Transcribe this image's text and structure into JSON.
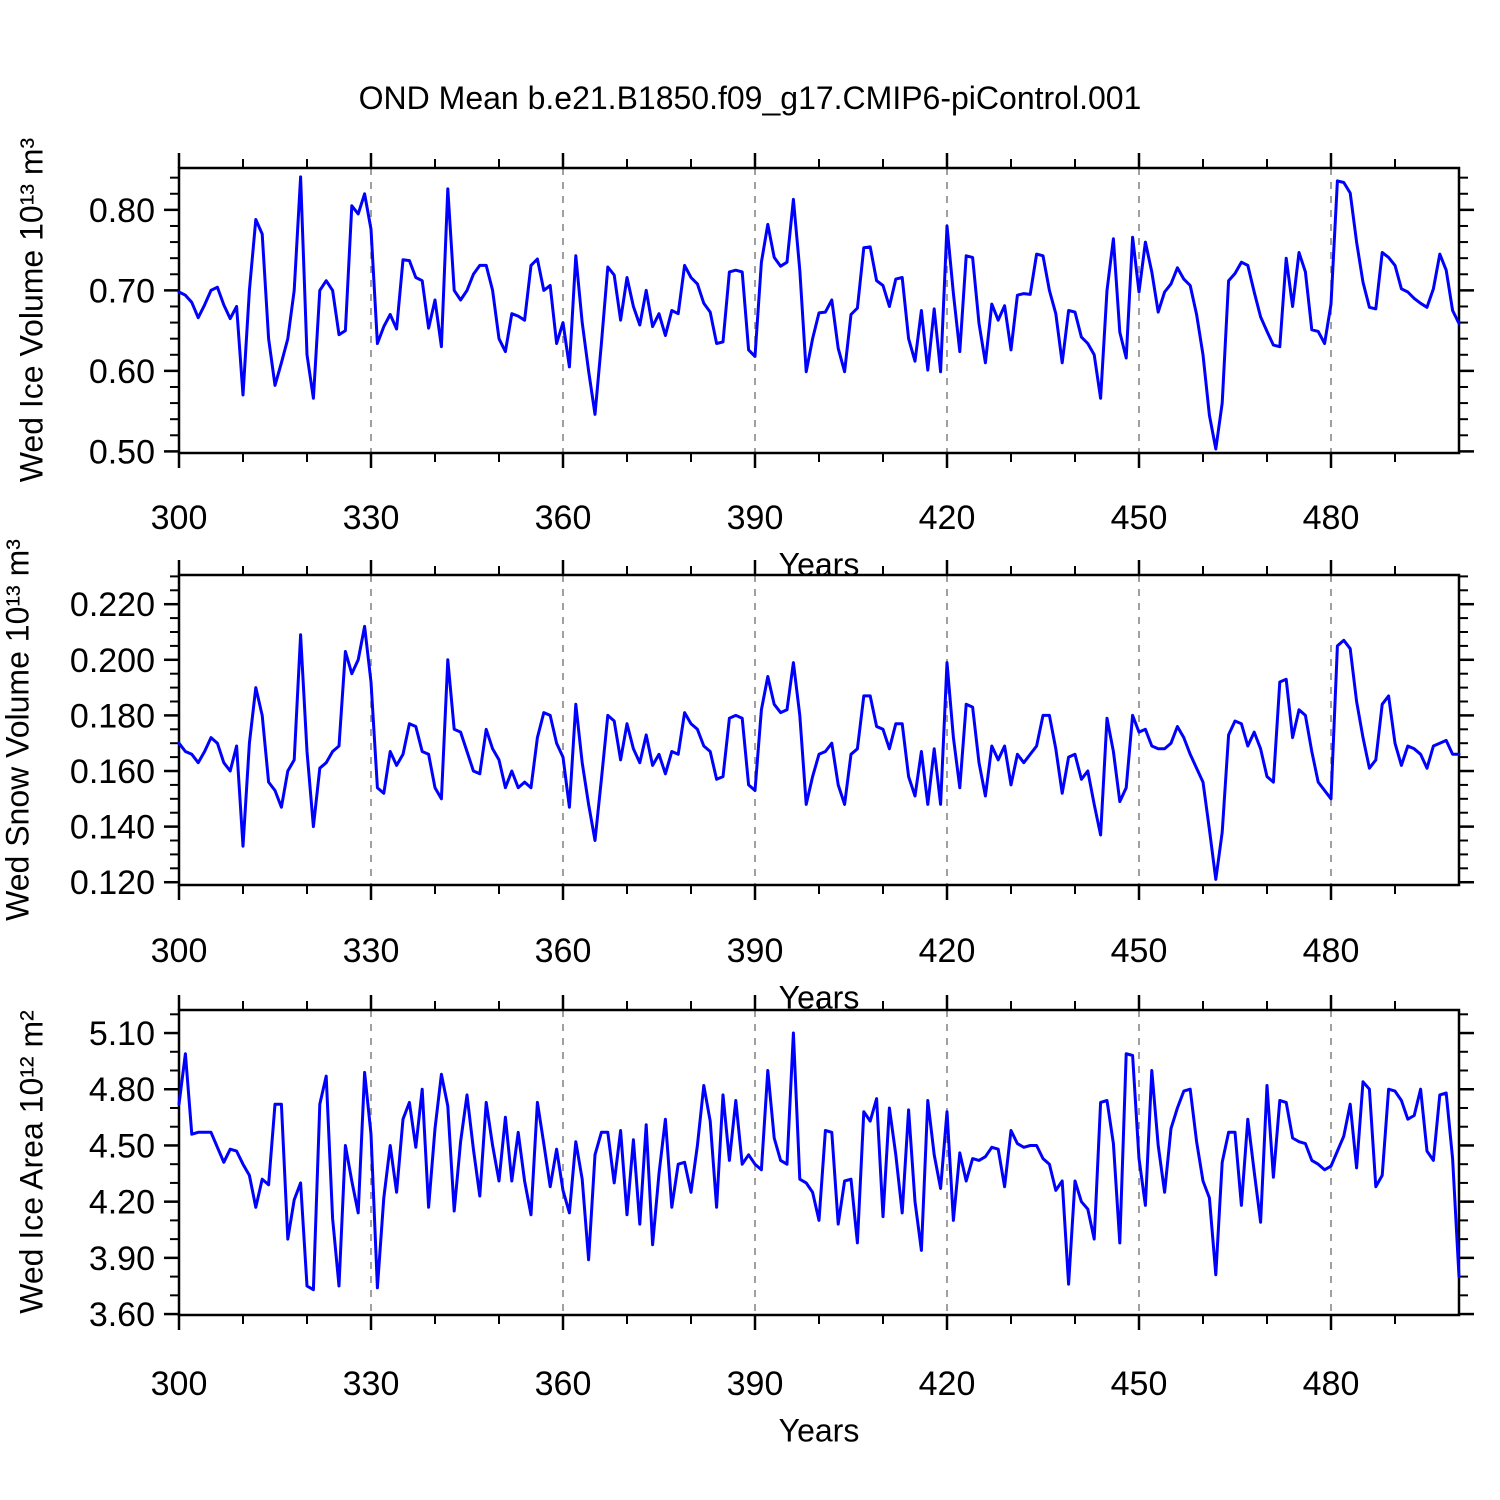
{
  "title": "OND Mean b.e21.B1850.f09_g17.CMIP6-piControl.001",
  "colors": {
    "line": "#0000ff",
    "axis": "#000000",
    "grid": "#808080",
    "background": "#ffffff"
  },
  "chart_data": [
    {
      "type": "line",
      "name": "wed-ice-volume",
      "ylabel": "Wed Ice Volume 10¹³ m³",
      "xlabel": "Years",
      "x_start": 300,
      "x_step": 1,
      "xlim": [
        300,
        500
      ],
      "xticks": [
        300,
        330,
        360,
        390,
        420,
        450,
        480
      ],
      "xtick_labels": [
        "300",
        "330",
        "360",
        "390",
        "420",
        "450",
        "480"
      ],
      "xminor_step": 10,
      "grid_x": [
        330,
        360,
        390,
        420,
        450,
        480
      ],
      "ylim": [
        0.498,
        0.852
      ],
      "yticks": [
        0.5,
        0.6,
        0.7,
        0.8
      ],
      "ytick_labels": [
        "0.50",
        "0.60",
        "0.70",
        "0.80"
      ],
      "yminor_step": 0.02,
      "values": [
        0.698,
        0.694,
        0.685,
        0.666,
        0.682,
        0.7,
        0.704,
        0.682,
        0.665,
        0.68,
        0.57,
        0.7,
        0.788,
        0.77,
        0.64,
        0.582,
        0.61,
        0.64,
        0.7,
        0.841,
        0.62,
        0.566,
        0.7,
        0.712,
        0.7,
        0.645,
        0.65,
        0.805,
        0.795,
        0.82,
        0.776,
        0.634,
        0.655,
        0.67,
        0.652,
        0.738,
        0.737,
        0.716,
        0.712,
        0.653,
        0.688,
        0.63,
        0.826,
        0.7,
        0.688,
        0.7,
        0.72,
        0.731,
        0.731,
        0.7,
        0.64,
        0.624,
        0.671,
        0.668,
        0.663,
        0.731,
        0.739,
        0.7,
        0.706,
        0.634,
        0.66,
        0.605,
        0.743,
        0.66,
        0.6,
        0.546,
        0.634,
        0.729,
        0.719,
        0.663,
        0.716,
        0.68,
        0.657,
        0.7,
        0.655,
        0.671,
        0.644,
        0.675,
        0.671,
        0.731,
        0.716,
        0.708,
        0.684,
        0.673,
        0.634,
        0.636,
        0.723,
        0.725,
        0.723,
        0.626,
        0.618,
        0.735,
        0.782,
        0.741,
        0.73,
        0.735,
        0.813,
        0.725,
        0.599,
        0.64,
        0.672,
        0.673,
        0.688,
        0.628,
        0.599,
        0.67,
        0.678,
        0.753,
        0.754,
        0.712,
        0.706,
        0.68,
        0.714,
        0.716,
        0.64,
        0.612,
        0.675,
        0.601,
        0.677,
        0.599,
        0.78,
        0.696,
        0.624,
        0.743,
        0.741,
        0.659,
        0.61,
        0.683,
        0.663,
        0.681,
        0.626,
        0.694,
        0.696,
        0.695,
        0.745,
        0.743,
        0.7,
        0.671,
        0.61,
        0.675,
        0.673,
        0.642,
        0.634,
        0.62,
        0.566,
        0.7,
        0.764,
        0.648,
        0.616,
        0.766,
        0.698,
        0.76,
        0.723,
        0.673,
        0.698,
        0.708,
        0.728,
        0.714,
        0.706,
        0.67,
        0.62,
        0.545,
        0.503,
        0.56,
        0.712,
        0.721,
        0.735,
        0.731,
        0.698,
        0.667,
        0.649,
        0.632,
        0.63,
        0.74,
        0.68,
        0.747,
        0.723,
        0.651,
        0.649,
        0.634,
        0.683,
        0.836,
        0.834,
        0.821,
        0.76,
        0.71,
        0.679,
        0.677,
        0.747,
        0.741,
        0.731,
        0.702,
        0.698,
        0.69,
        0.684,
        0.679,
        0.702,
        0.745,
        0.725,
        0.675,
        0.659
      ]
    },
    {
      "type": "line",
      "name": "wed-snow-volume",
      "ylabel": "Wed Snow Volume 10¹³ m³",
      "xlabel": "Years",
      "x_start": 300,
      "x_step": 1,
      "xlim": [
        300,
        500
      ],
      "xticks": [
        300,
        330,
        360,
        390,
        420,
        450,
        480
      ],
      "xtick_labels": [
        "300",
        "330",
        "360",
        "390",
        "420",
        "450",
        "480"
      ],
      "xminor_step": 10,
      "grid_x": [
        330,
        360,
        390,
        420,
        450,
        480
      ],
      "ylim": [
        0.119,
        0.2305
      ],
      "yticks": [
        0.12,
        0.14,
        0.16,
        0.18,
        0.2,
        0.22
      ],
      "ytick_labels": [
        "0.120",
        "0.140",
        "0.160",
        "0.180",
        "0.200",
        "0.220"
      ],
      "yminor_step": 0.005,
      "values": [
        0.17,
        0.167,
        0.166,
        0.163,
        0.167,
        0.172,
        0.17,
        0.163,
        0.16,
        0.169,
        0.133,
        0.17,
        0.19,
        0.18,
        0.156,
        0.153,
        0.147,
        0.16,
        0.164,
        0.209,
        0.167,
        0.14,
        0.161,
        0.163,
        0.167,
        0.169,
        0.203,
        0.195,
        0.2,
        0.212,
        0.192,
        0.154,
        0.152,
        0.167,
        0.162,
        0.166,
        0.177,
        0.176,
        0.167,
        0.166,
        0.154,
        0.15,
        0.2,
        0.175,
        0.174,
        0.167,
        0.16,
        0.159,
        0.175,
        0.168,
        0.164,
        0.154,
        0.16,
        0.154,
        0.156,
        0.154,
        0.172,
        0.181,
        0.18,
        0.17,
        0.165,
        0.147,
        0.184,
        0.163,
        0.148,
        0.135,
        0.157,
        0.18,
        0.178,
        0.164,
        0.177,
        0.168,
        0.163,
        0.173,
        0.162,
        0.166,
        0.159,
        0.167,
        0.166,
        0.181,
        0.177,
        0.175,
        0.169,
        0.167,
        0.157,
        0.158,
        0.179,
        0.18,
        0.179,
        0.155,
        0.153,
        0.182,
        0.194,
        0.184,
        0.181,
        0.182,
        0.199,
        0.18,
        0.148,
        0.158,
        0.166,
        0.167,
        0.17,
        0.155,
        0.148,
        0.166,
        0.168,
        0.187,
        0.187,
        0.176,
        0.175,
        0.168,
        0.177,
        0.177,
        0.158,
        0.151,
        0.167,
        0.148,
        0.168,
        0.148,
        0.199,
        0.172,
        0.154,
        0.184,
        0.183,
        0.163,
        0.151,
        0.169,
        0.164,
        0.169,
        0.155,
        0.166,
        0.163,
        0.166,
        0.169,
        0.18,
        0.18,
        0.168,
        0.152,
        0.165,
        0.166,
        0.157,
        0.16,
        0.148,
        0.137,
        0.179,
        0.167,
        0.149,
        0.154,
        0.18,
        0.174,
        0.175,
        0.169,
        0.168,
        0.168,
        0.17,
        0.176,
        0.172,
        0.166,
        0.161,
        0.156,
        0.139,
        0.121,
        0.138,
        0.173,
        0.178,
        0.177,
        0.169,
        0.174,
        0.168,
        0.158,
        0.156,
        0.192,
        0.193,
        0.172,
        0.182,
        0.18,
        0.167,
        0.156,
        0.153,
        0.15,
        0.205,
        0.207,
        0.204,
        0.185,
        0.172,
        0.161,
        0.164,
        0.184,
        0.187,
        0.17,
        0.162,
        0.169,
        0.168,
        0.166,
        0.161,
        0.169,
        0.17,
        0.171,
        0.166,
        0.166
      ]
    },
    {
      "type": "line",
      "name": "wed-ice-area",
      "ylabel": "Wed Ice Area 10¹² m²",
      "xlabel": "Years",
      "x_start": 300,
      "x_step": 1,
      "xlim": [
        300,
        500
      ],
      "xticks": [
        300,
        330,
        360,
        390,
        420,
        450,
        480
      ],
      "xtick_labels": [
        "300",
        "330",
        "360",
        "390",
        "420",
        "450",
        "480"
      ],
      "xminor_step": 10,
      "grid_x": [
        330,
        360,
        390,
        420,
        450,
        480
      ],
      "ylim": [
        3.595,
        5.223
      ],
      "yticks": [
        3.6,
        3.9,
        4.2,
        4.5,
        4.8,
        5.1
      ],
      "ytick_labels": [
        "3.60",
        "3.90",
        "4.20",
        "4.50",
        "4.80",
        "5.10"
      ],
      "yminor_step": 0.1,
      "values": [
        4.72,
        4.99,
        4.56,
        4.57,
        4.57,
        4.57,
        4.49,
        4.41,
        4.48,
        4.47,
        4.4,
        4.34,
        4.17,
        4.32,
        4.29,
        4.72,
        4.72,
        4.0,
        4.21,
        4.3,
        3.75,
        3.73,
        4.72,
        4.87,
        4.11,
        3.75,
        4.5,
        4.31,
        4.14,
        4.89,
        4.56,
        3.74,
        4.22,
        4.5,
        4.25,
        4.64,
        4.73,
        4.49,
        4.8,
        4.17,
        4.59,
        4.88,
        4.71,
        4.15,
        4.52,
        4.77,
        4.48,
        4.23,
        4.73,
        4.5,
        4.31,
        4.65,
        4.31,
        4.57,
        4.31,
        4.13,
        4.73,
        4.51,
        4.28,
        4.48,
        4.26,
        4.14,
        4.52,
        4.32,
        3.89,
        4.45,
        4.57,
        4.57,
        4.3,
        4.58,
        4.13,
        4.53,
        4.08,
        4.61,
        3.97,
        4.35,
        4.64,
        4.17,
        4.4,
        4.41,
        4.25,
        4.5,
        4.82,
        4.63,
        4.17,
        4.77,
        4.42,
        4.74,
        4.4,
        4.45,
        4.4,
        4.37,
        4.9,
        4.54,
        4.42,
        4.4,
        5.1,
        4.32,
        4.3,
        4.25,
        4.1,
        4.58,
        4.57,
        4.08,
        4.31,
        4.32,
        3.98,
        4.68,
        4.63,
        4.75,
        4.12,
        4.7,
        4.45,
        4.14,
        4.69,
        4.2,
        3.94,
        4.74,
        4.45,
        4.27,
        4.68,
        4.1,
        4.46,
        4.31,
        4.43,
        4.42,
        4.44,
        4.49,
        4.48,
        4.28,
        4.58,
        4.51,
        4.49,
        4.5,
        4.5,
        4.43,
        4.4,
        4.26,
        4.31,
        3.76,
        4.31,
        4.2,
        4.16,
        4.0,
        4.73,
        4.74,
        4.51,
        3.98,
        4.99,
        4.98,
        4.43,
        4.18,
        4.9,
        4.5,
        4.25,
        4.59,
        4.7,
        4.79,
        4.8,
        4.52,
        4.31,
        4.22,
        3.81,
        4.41,
        4.57,
        4.57,
        4.18,
        4.64,
        4.36,
        4.09,
        4.82,
        4.33,
        4.74,
        4.73,
        4.54,
        4.52,
        4.51,
        4.42,
        4.4,
        4.37,
        4.39,
        4.47,
        4.55,
        4.72,
        4.38,
        4.84,
        4.8,
        4.28,
        4.34,
        4.8,
        4.79,
        4.74,
        4.64,
        4.66,
        4.8,
        4.47,
        4.42,
        4.77,
        4.78,
        4.43,
        3.8
      ]
    }
  ]
}
